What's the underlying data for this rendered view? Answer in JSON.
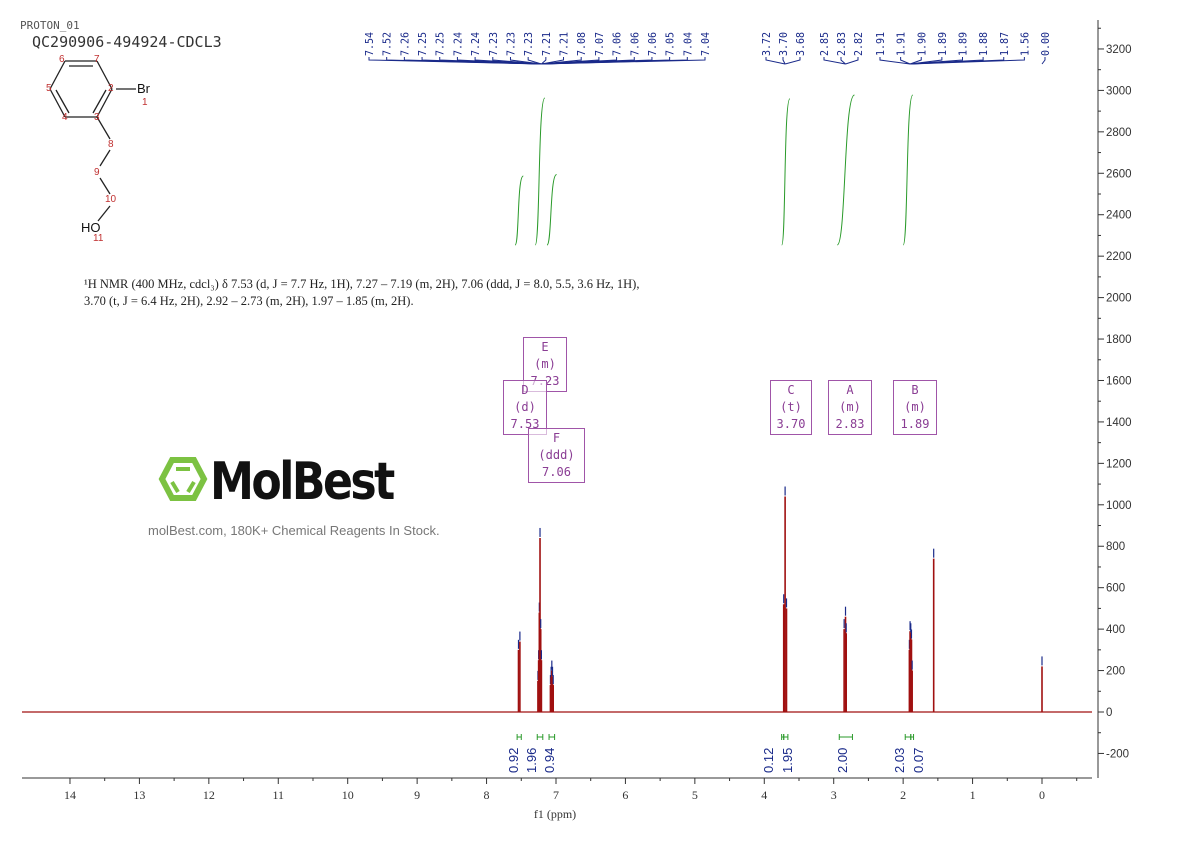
{
  "header": {
    "experiment": "PROTON_01",
    "sample": "QC290906-494924-CDCL3"
  },
  "structure": {
    "atoms": [
      {
        "label": "Br",
        "num": "1"
      },
      {
        "num": "2"
      },
      {
        "num": "3"
      },
      {
        "num": "4"
      },
      {
        "num": "5"
      },
      {
        "num": "6"
      },
      {
        "num": "7"
      },
      {
        "num": "8"
      },
      {
        "num": "9"
      },
      {
        "num": "10"
      },
      {
        "label": "HO",
        "num": "11"
      }
    ]
  },
  "description": "¹H NMR (400 MHz, cdcl₃) δ 7.53 (d, J = 7.7 Hz, 1H), 7.27 – 7.19 (m, 2H), 7.06 (ddd, J = 8.0, 5.5, 3.6 Hz, 1H), 3.70 (t, J = 6.4 Hz, 2H), 2.92 – 2.73 (m, 2H), 1.97 – 1.85 (m, 2H).",
  "watermark": {
    "logo": "MolBest",
    "text": "molBest.com, 180K+ Chemical Reagents In Stock."
  },
  "multiplets": [
    {
      "id": "D",
      "type": "d",
      "shift": "7.53"
    },
    {
      "id": "E",
      "type": "m",
      "shift": "7.23"
    },
    {
      "id": "F",
      "type": "ddd",
      "shift": "7.06"
    },
    {
      "id": "C",
      "type": "t",
      "shift": "3.70"
    },
    {
      "id": "A",
      "type": "m",
      "shift": "2.83"
    },
    {
      "id": "B",
      "type": "m",
      "shift": "1.89"
    }
  ],
  "chart_data": {
    "type": "line",
    "xlabel": "f1 (ppm)",
    "xlim": [
      14.7,
      -0.72
    ],
    "ylim": [
      -320,
      3340
    ],
    "xticks": [
      14,
      13,
      12,
      11,
      10,
      9,
      8,
      7,
      6,
      5,
      4,
      3,
      2,
      1,
      0
    ],
    "yticks": [
      -200,
      0,
      200,
      400,
      600,
      800,
      1000,
      1200,
      1400,
      1600,
      1800,
      2000,
      2200,
      2400,
      2600,
      2800,
      3000,
      3200
    ],
    "colors": {
      "spectrum": "#a01010",
      "peak_labels": "#1a2a8a",
      "integrals": "#2a9a2a",
      "multiplet_box": "#a055a8"
    },
    "peak_label_groups": [
      [
        "7.54",
        "7.52",
        "7.26",
        "7.25",
        "7.25",
        "7.24",
        "7.24",
        "7.23",
        "7.23",
        "7.23",
        "7.21",
        "7.21",
        "7.08",
        "7.07",
        "7.06",
        "7.06",
        "7.06",
        "7.05",
        "7.04",
        "7.04"
      ],
      [
        "3.72",
        "3.70",
        "3.68"
      ],
      [
        "2.85",
        "2.83",
        "2.82"
      ],
      [
        "1.91",
        "1.91",
        "1.90",
        "1.89",
        "1.89",
        "1.88",
        "1.87",
        "1.56",
        "0.00"
      ]
    ],
    "peaks": [
      {
        "ppm": 7.54,
        "intensity": 300
      },
      {
        "ppm": 7.52,
        "intensity": 340
      },
      {
        "ppm": 7.26,
        "intensity": 150
      },
      {
        "ppm": 7.25,
        "intensity": 250
      },
      {
        "ppm": 7.24,
        "intensity": 480
      },
      {
        "ppm": 7.23,
        "intensity": 840
      },
      {
        "ppm": 7.22,
        "intensity": 400
      },
      {
        "ppm": 7.21,
        "intensity": 250
      },
      {
        "ppm": 7.08,
        "intensity": 130
      },
      {
        "ppm": 7.07,
        "intensity": 170
      },
      {
        "ppm": 7.06,
        "intensity": 200
      },
      {
        "ppm": 7.05,
        "intensity": 170
      },
      {
        "ppm": 7.04,
        "intensity": 130
      },
      {
        "ppm": 3.72,
        "intensity": 520
      },
      {
        "ppm": 3.7,
        "intensity": 1040
      },
      {
        "ppm": 3.68,
        "intensity": 500
      },
      {
        "ppm": 2.85,
        "intensity": 400
      },
      {
        "ppm": 2.83,
        "intensity": 460
      },
      {
        "ppm": 2.82,
        "intensity": 380
      },
      {
        "ppm": 1.91,
        "intensity": 300
      },
      {
        "ppm": 1.9,
        "intensity": 390
      },
      {
        "ppm": 1.89,
        "intensity": 380
      },
      {
        "ppm": 1.88,
        "intensity": 350
      },
      {
        "ppm": 1.87,
        "intensity": 200
      },
      {
        "ppm": 1.56,
        "intensity": 740
      },
      {
        "ppm": 0.0,
        "intensity": 220
      }
    ],
    "integrals": [
      {
        "from": 7.56,
        "to": 7.5,
        "value": "0.92"
      },
      {
        "from": 7.27,
        "to": 7.19,
        "value": "1.96"
      },
      {
        "from": 7.1,
        "to": 7.02,
        "value": "0.94"
      },
      {
        "from": 3.75,
        "to": 3.72,
        "value": "0.12"
      },
      {
        "from": 3.72,
        "to": 3.66,
        "value": "1.95"
      },
      {
        "from": 2.92,
        "to": 2.73,
        "value": "2.00"
      },
      {
        "from": 1.97,
        "to": 1.89,
        "value": "2.03"
      },
      {
        "from": 1.89,
        "to": 1.85,
        "value": "0.07"
      }
    ]
  }
}
